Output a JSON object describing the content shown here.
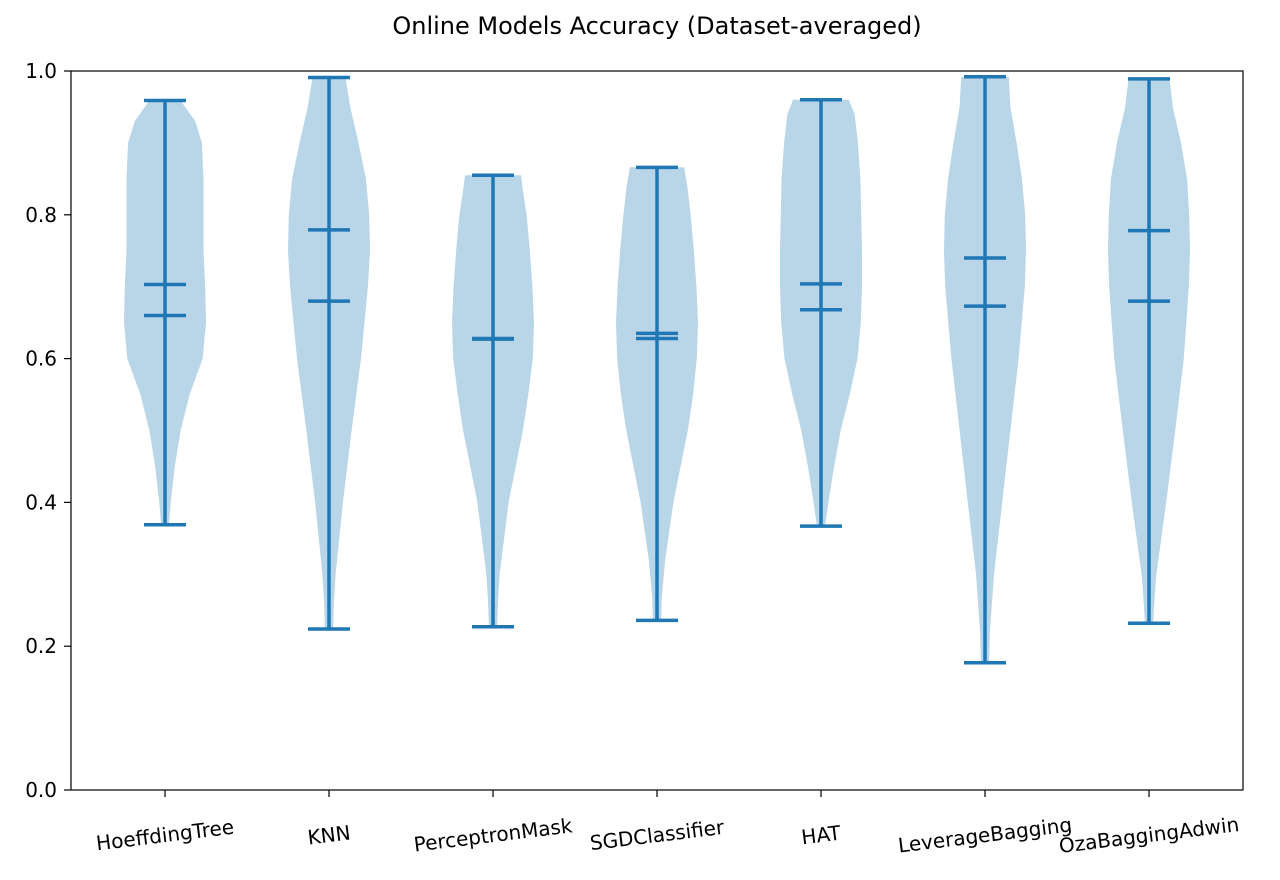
{
  "chart_data": {
    "type": "violin",
    "title": "Online Models Accuracy (Dataset-averaged)",
    "xlabel": "",
    "ylabel": "",
    "ylim": [
      0,
      1.0
    ],
    "yticks": [
      "0.0",
      "0.2",
      "0.4",
      "0.6",
      "0.8",
      "1.0"
    ],
    "grid": false,
    "colors": {
      "line": "#1f77b4",
      "body": "#b9d5e8",
      "axes": "#000000"
    },
    "categories": [
      "HoeffdingTree",
      "KNN",
      "PerceptronMask",
      "SGDClassifier",
      "HAT",
      "LeverageBagging",
      "OzaBaggingAdwin"
    ],
    "series": [
      {
        "min": 0.369,
        "max": 0.959,
        "mean": 0.703,
        "median": 0.66,
        "profile": [
          [
            0.37,
            0.1
          ],
          [
            0.4,
            0.14
          ],
          [
            0.45,
            0.24
          ],
          [
            0.5,
            0.38
          ],
          [
            0.55,
            0.6
          ],
          [
            0.6,
            0.92
          ],
          [
            0.65,
            1.0
          ],
          [
            0.7,
            0.98
          ],
          [
            0.75,
            0.94
          ],
          [
            0.8,
            0.94
          ],
          [
            0.85,
            0.94
          ],
          [
            0.9,
            0.9
          ],
          [
            0.93,
            0.74
          ],
          [
            0.959,
            0.38
          ]
        ]
      },
      {
        "min": 0.224,
        "max": 0.991,
        "mean": 0.68,
        "median": 0.779,
        "profile": [
          [
            0.224,
            0.1
          ],
          [
            0.26,
            0.12
          ],
          [
            0.3,
            0.16
          ],
          [
            0.4,
            0.34
          ],
          [
            0.5,
            0.55
          ],
          [
            0.6,
            0.78
          ],
          [
            0.7,
            0.95
          ],
          [
            0.75,
            1.0
          ],
          [
            0.8,
            0.98
          ],
          [
            0.85,
            0.9
          ],
          [
            0.9,
            0.72
          ],
          [
            0.95,
            0.52
          ],
          [
            0.991,
            0.4
          ]
        ]
      },
      {
        "min": 0.227,
        "max": 0.855,
        "mean": 0.628,
        "median": 0.627,
        "profile": [
          [
            0.227,
            0.1
          ],
          [
            0.26,
            0.12
          ],
          [
            0.3,
            0.16
          ],
          [
            0.4,
            0.38
          ],
          [
            0.5,
            0.73
          ],
          [
            0.55,
            0.86
          ],
          [
            0.6,
            0.97
          ],
          [
            0.65,
            1.0
          ],
          [
            0.7,
            0.96
          ],
          [
            0.75,
            0.9
          ],
          [
            0.8,
            0.82
          ],
          [
            0.83,
            0.74
          ],
          [
            0.855,
            0.68
          ]
        ]
      },
      {
        "min": 0.236,
        "max": 0.866,
        "mean": 0.635,
        "median": 0.628,
        "profile": [
          [
            0.236,
            0.1
          ],
          [
            0.27,
            0.12
          ],
          [
            0.32,
            0.2
          ],
          [
            0.4,
            0.4
          ],
          [
            0.5,
            0.75
          ],
          [
            0.55,
            0.88
          ],
          [
            0.6,
            0.97
          ],
          [
            0.65,
            1.0
          ],
          [
            0.7,
            0.96
          ],
          [
            0.75,
            0.9
          ],
          [
            0.8,
            0.82
          ],
          [
            0.84,
            0.74
          ],
          [
            0.866,
            0.66
          ]
        ]
      },
      {
        "min": 0.367,
        "max": 0.96,
        "mean": 0.704,
        "median": 0.668,
        "profile": [
          [
            0.367,
            0.1
          ],
          [
            0.4,
            0.18
          ],
          [
            0.45,
            0.32
          ],
          [
            0.5,
            0.48
          ],
          [
            0.55,
            0.7
          ],
          [
            0.6,
            0.89
          ],
          [
            0.65,
            0.97
          ],
          [
            0.7,
            1.0
          ],
          [
            0.75,
            1.0
          ],
          [
            0.8,
            0.98
          ],
          [
            0.85,
            0.96
          ],
          [
            0.9,
            0.9
          ],
          [
            0.94,
            0.82
          ],
          [
            0.96,
            0.68
          ]
        ]
      },
      {
        "min": 0.177,
        "max": 0.992,
        "mean": 0.673,
        "median": 0.74,
        "profile": [
          [
            0.177,
            0.1
          ],
          [
            0.22,
            0.12
          ],
          [
            0.3,
            0.22
          ],
          [
            0.4,
            0.42
          ],
          [
            0.5,
            0.62
          ],
          [
            0.6,
            0.82
          ],
          [
            0.7,
            0.97
          ],
          [
            0.75,
            1.0
          ],
          [
            0.8,
            0.98
          ],
          [
            0.85,
            0.9
          ],
          [
            0.9,
            0.77
          ],
          [
            0.95,
            0.62
          ],
          [
            0.992,
            0.58
          ]
        ]
      },
      {
        "min": 0.232,
        "max": 0.989,
        "mean": 0.68,
        "median": 0.778,
        "profile": [
          [
            0.232,
            0.1
          ],
          [
            0.27,
            0.14
          ],
          [
            0.3,
            0.18
          ],
          [
            0.4,
            0.42
          ],
          [
            0.5,
            0.64
          ],
          [
            0.6,
            0.85
          ],
          [
            0.7,
            0.97
          ],
          [
            0.75,
            1.0
          ],
          [
            0.8,
            0.98
          ],
          [
            0.85,
            0.93
          ],
          [
            0.9,
            0.78
          ],
          [
            0.95,
            0.58
          ],
          [
            0.989,
            0.5
          ]
        ]
      }
    ]
  }
}
